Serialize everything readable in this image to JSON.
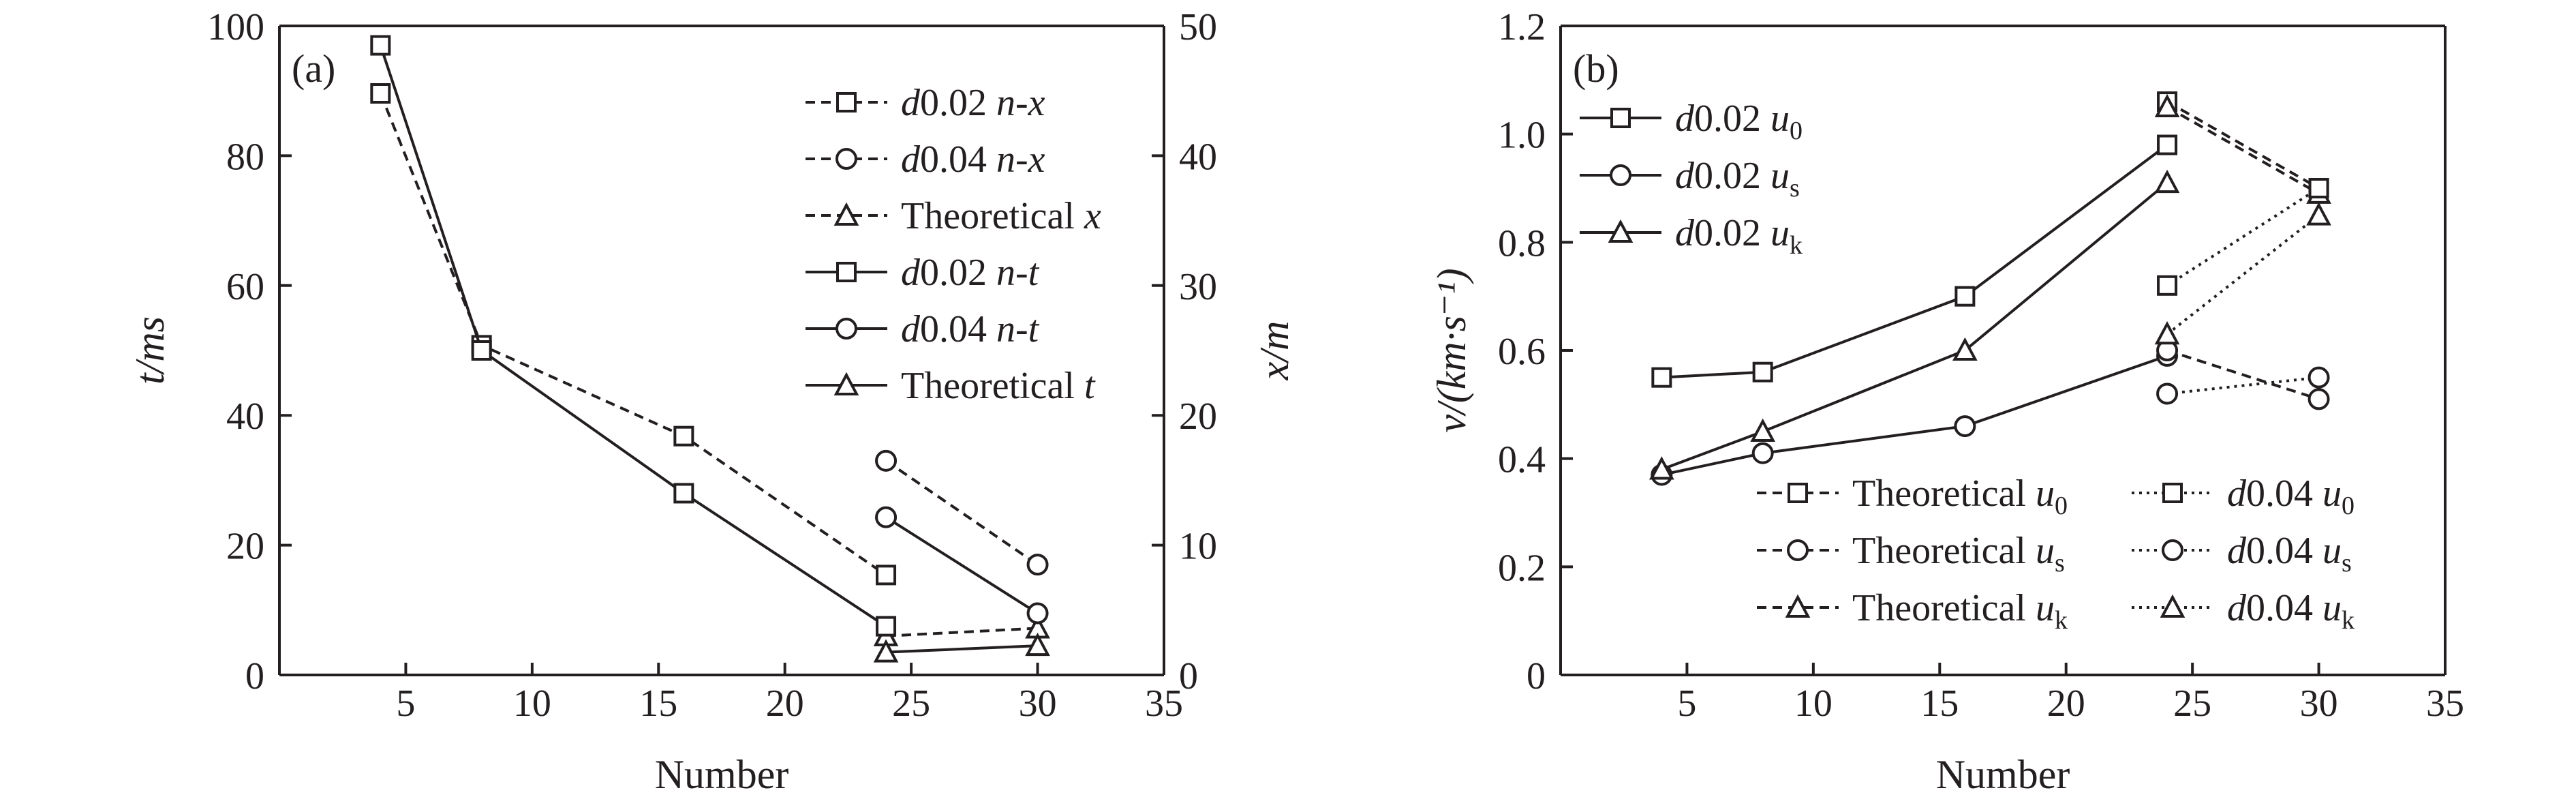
{
  "chart_data": [
    {
      "type": "line",
      "panel_label": "(a)",
      "xlabel": "Number",
      "ylabel_left": "t/ms",
      "ylabel_right": "x/m",
      "xlim": [
        0,
        35
      ],
      "xticks": [
        5,
        10,
        15,
        20,
        25,
        30,
        35
      ],
      "ylim_left": [
        0,
        100
      ],
      "yticks_left": [
        0,
        20,
        40,
        60,
        80,
        100
      ],
      "ylim_right": [
        0,
        50
      ],
      "yticks_right": [
        0,
        10,
        20,
        30,
        40,
        50
      ],
      "grid": false,
      "legend_position": "top-right",
      "series": [
        {
          "name": "d0.02 n-x",
          "axis": "right",
          "style": "dashed",
          "marker": "square",
          "x": [
            4,
            8,
            16,
            24
          ],
          "y": [
            44.8,
            25.4,
            18.4,
            7.7
          ]
        },
        {
          "name": "d0.04 n-x",
          "axis": "right",
          "style": "dashed",
          "marker": "circle",
          "x": [
            24,
            30
          ],
          "y": [
            16.5,
            8.5
          ]
        },
        {
          "name": "Theoretical x",
          "axis": "right",
          "style": "dashed",
          "marker": "triangle",
          "x": [
            24,
            30
          ],
          "y": [
            3.0,
            3.6
          ]
        },
        {
          "name": "d0.02 n-t",
          "axis": "left",
          "style": "solid",
          "marker": "square",
          "x": [
            4,
            8,
            16,
            24
          ],
          "y": [
            97,
            50,
            28,
            7.5
          ]
        },
        {
          "name": "d0.04 n-t",
          "axis": "left",
          "style": "solid",
          "marker": "circle",
          "x": [
            24,
            30
          ],
          "y": [
            24.3,
            9.5
          ]
        },
        {
          "name": "Theoretical t",
          "axis": "left",
          "style": "solid",
          "marker": "triangle",
          "x": [
            24,
            30
          ],
          "y": [
            3.5,
            4.5
          ]
        }
      ]
    },
    {
      "type": "line",
      "panel_label": "(b)",
      "xlabel": "Number",
      "ylabel": "v/(km·s⁻¹)",
      "xlim": [
        0,
        35
      ],
      "xticks": [
        5,
        10,
        15,
        20,
        25,
        30,
        35
      ],
      "ylim": [
        0,
        1.2
      ],
      "yticks": [
        "0",
        "0.2",
        "0.4",
        "0.6",
        "0.8",
        "1.0",
        "1.2"
      ],
      "grid": false,
      "legend_position": "top-left and bottom-right",
      "series": [
        {
          "name": "d0.02 u0",
          "style": "solid",
          "marker": "square",
          "x": [
            4,
            8,
            16,
            24
          ],
          "y": [
            0.55,
            0.56,
            0.7,
            0.98
          ]
        },
        {
          "name": "d0.02 us",
          "style": "solid",
          "marker": "circle",
          "x": [
            4,
            8,
            16,
            24
          ],
          "y": [
            0.37,
            0.41,
            0.46,
            0.59
          ]
        },
        {
          "name": "d0.02 uk",
          "style": "solid",
          "marker": "triangle",
          "x": [
            4,
            8,
            16,
            24
          ],
          "y": [
            0.38,
            0.45,
            0.6,
            0.91
          ]
        },
        {
          "name": "Theoretical u0",
          "style": "dashed",
          "marker": "square",
          "x": [
            24,
            30
          ],
          "y": [
            1.06,
            0.9
          ]
        },
        {
          "name": "Theoretical us",
          "style": "dashed",
          "marker": "circle",
          "x": [
            24,
            30
          ],
          "y": [
            0.6,
            0.51
          ]
        },
        {
          "name": "Theoretical uk",
          "style": "dashed",
          "marker": "triangle",
          "x": [
            24,
            30
          ],
          "y": [
            1.05,
            0.89
          ]
        },
        {
          "name": "d0.04 u0",
          "style": "dotted",
          "marker": "square",
          "x": [
            24,
            30
          ],
          "y": [
            0.72,
            0.9
          ]
        },
        {
          "name": "d0.04 us",
          "style": "dotted",
          "marker": "circle",
          "x": [
            24,
            30
          ],
          "y": [
            0.52,
            0.55
          ]
        },
        {
          "name": "d0.04 uk",
          "style": "dotted",
          "marker": "triangle",
          "x": [
            24,
            30
          ],
          "y": [
            0.63,
            0.85
          ]
        }
      ]
    }
  ],
  "legend_a": [
    {
      "pre": "d",
      "main": "0.02 ",
      "tail": "n-x",
      "sub": "",
      "style": "dashed",
      "marker": "square"
    },
    {
      "pre": "d",
      "main": "0.04 ",
      "tail": "n-x",
      "sub": "",
      "style": "dashed",
      "marker": "circle"
    },
    {
      "pre": "",
      "main": "Theoretical ",
      "tail": "x",
      "sub": "",
      "style": "dashed",
      "marker": "triangle"
    },
    {
      "pre": "d",
      "main": "0.02 ",
      "tail": "n-t",
      "sub": "",
      "style": "solid",
      "marker": "square"
    },
    {
      "pre": "d",
      "main": "0.04 ",
      "tail": "n-t",
      "sub": "",
      "style": "solid",
      "marker": "circle"
    },
    {
      "pre": "",
      "main": "Theoretical ",
      "tail": "t",
      "sub": "",
      "style": "solid",
      "marker": "triangle"
    }
  ],
  "legend_b_top": [
    {
      "pre": "d",
      "main": "0.02 ",
      "tail": "u",
      "sub": "0",
      "style": "solid",
      "marker": "square"
    },
    {
      "pre": "d",
      "main": "0.02 ",
      "tail": "u",
      "sub": "s",
      "style": "solid",
      "marker": "circle"
    },
    {
      "pre": "d",
      "main": "0.02 ",
      "tail": "u",
      "sub": "k",
      "style": "solid",
      "marker": "triangle"
    }
  ],
  "legend_b_bottom_left": [
    {
      "pre": "",
      "main": "Theoretical ",
      "tail": "u",
      "sub": "0",
      "style": "dashed",
      "marker": "square"
    },
    {
      "pre": "",
      "main": "Theoretical ",
      "tail": "u",
      "sub": "s",
      "style": "dashed",
      "marker": "circle"
    },
    {
      "pre": "",
      "main": "Theoretical ",
      "tail": "u",
      "sub": "k",
      "style": "dashed",
      "marker": "triangle"
    }
  ],
  "legend_b_bottom_right": [
    {
      "pre": "d",
      "main": "0.04 ",
      "tail": "u",
      "sub": "0",
      "style": "dotted",
      "marker": "square"
    },
    {
      "pre": "d",
      "main": "0.04 ",
      "tail": "u",
      "sub": "s",
      "style": "dotted",
      "marker": "circle"
    },
    {
      "pre": "d",
      "main": "0.04 ",
      "tail": "u",
      "sub": "k",
      "style": "dotted",
      "marker": "triangle"
    }
  ]
}
